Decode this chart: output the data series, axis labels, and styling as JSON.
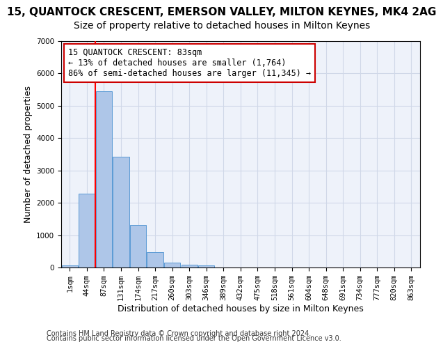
{
  "title_line1": "15, QUANTOCK CRESCENT, EMERSON VALLEY, MILTON KEYNES, MK4 2AG",
  "title_line2": "Size of property relative to detached houses in Milton Keynes",
  "xlabel": "Distribution of detached houses by size in Milton Keynes",
  "ylabel": "Number of detached properties",
  "footnote1": "Contains HM Land Registry data © Crown copyright and database right 2024.",
  "footnote2": "Contains public sector information licensed under the Open Government Licence v3.0.",
  "bar_values": [
    80,
    2280,
    5450,
    3430,
    1320,
    470,
    160,
    90,
    60,
    0,
    0,
    0,
    0,
    0,
    0,
    0,
    0,
    0,
    0,
    0,
    0
  ],
  "categories": [
    "1sqm",
    "44sqm",
    "87sqm",
    "131sqm",
    "174sqm",
    "217sqm",
    "260sqm",
    "303sqm",
    "346sqm",
    "389sqm",
    "432sqm",
    "475sqm",
    "518sqm",
    "561sqm",
    "604sqm",
    "648sqm",
    "691sqm",
    "734sqm",
    "777sqm",
    "820sqm",
    "863sqm"
  ],
  "bar_color": "#aec6e8",
  "bar_edge_color": "#5b9bd5",
  "grid_color": "#d0d8e8",
  "background_color": "#eef2fa",
  "annotation_box_text": "15 QUANTOCK CRESCENT: 83sqm\n← 13% of detached houses are smaller (1,764)\n86% of semi-detached houses are larger (11,345) →",
  "annotation_box_color": "#ffffff",
  "annotation_box_edge_color": "#cc0000",
  "red_line_x": 1.5,
  "ylim": [
    0,
    7000
  ],
  "yticks": [
    0,
    1000,
    2000,
    3000,
    4000,
    5000,
    6000,
    7000
  ],
  "title_fontsize": 11,
  "subtitle_fontsize": 10,
  "annotation_fontsize": 8.5,
  "ylabel_fontsize": 9,
  "xlabel_fontsize": 9,
  "tick_fontsize": 7.5,
  "footnote_fontsize": 7
}
